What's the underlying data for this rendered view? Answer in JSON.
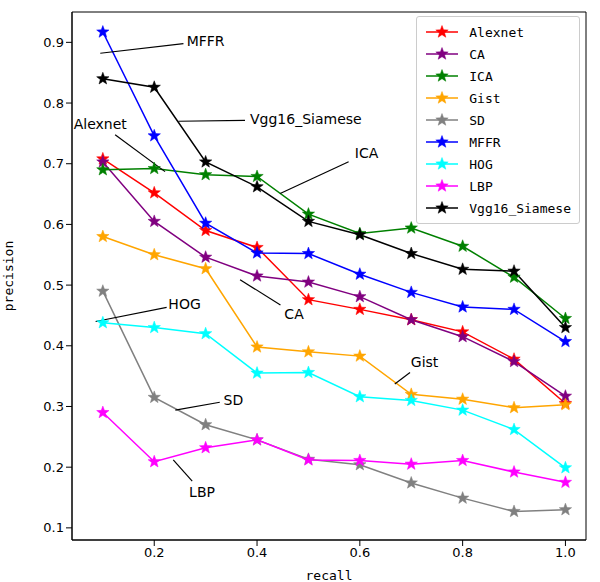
{
  "chart_data": {
    "type": "line",
    "x_label": "recall",
    "y_label": "precision",
    "x": [
      0.1,
      0.2,
      0.3,
      0.4,
      0.5,
      0.6,
      0.7,
      0.8,
      0.9,
      1.0
    ],
    "xlim": [
      0.04,
      1.04
    ],
    "xticks": [
      0.2,
      0.4,
      0.6,
      0.8,
      {
        "value": 1,
        "label": "1.0"
      }
    ],
    "ylim": [
      0.08,
      0.95
    ],
    "yticks": [
      0.1,
      0.2,
      0.3,
      0.4,
      0.5,
      0.6,
      0.7,
      0.8,
      0.9
    ],
    "grid": false,
    "legend": "upper right",
    "marker": "star",
    "line_style": "solid",
    "series": [
      {
        "name": "Alexnet",
        "color": "#ff0000",
        "values": [
          0.708,
          0.652,
          0.59,
          0.562,
          0.476,
          0.46,
          0.443,
          0.423,
          0.378,
          0.305
        ]
      },
      {
        "name": "CA",
        "color": "#800080",
        "values": [
          0.703,
          0.605,
          0.546,
          0.515,
          0.505,
          0.481,
          0.443,
          0.415,
          0.374,
          0.317
        ]
      },
      {
        "name": "ICA",
        "color": "#008000",
        "values": [
          0.69,
          0.692,
          0.682,
          0.679,
          0.617,
          0.585,
          0.594,
          0.564,
          0.513,
          0.445
        ]
      },
      {
        "name": "Gist",
        "color": "#ffa500",
        "values": [
          0.58,
          0.55,
          0.527,
          0.398,
          0.39,
          0.383,
          0.32,
          0.312,
          0.298,
          0.303
        ]
      },
      {
        "name": "SD",
        "color": "#808080",
        "values": [
          0.49,
          0.315,
          0.27,
          0.245,
          0.213,
          0.204,
          0.174,
          0.149,
          0.127,
          0.13
        ]
      },
      {
        "name": "MFFR",
        "color": "#0000ff",
        "values": [
          0.917,
          0.746,
          0.602,
          0.553,
          0.552,
          0.518,
          0.488,
          0.464,
          0.46,
          0.407
        ]
      },
      {
        "name": "HOG",
        "color": "#00ffff",
        "values": [
          0.438,
          0.43,
          0.42,
          0.355,
          0.356,
          0.316,
          0.31,
          0.294,
          0.262,
          0.199
        ]
      },
      {
        "name": "LBP",
        "color": "#ff00ff",
        "values": [
          0.29,
          0.209,
          0.232,
          0.245,
          0.212,
          0.211,
          0.205,
          0.211,
          0.192,
          0.175
        ]
      },
      {
        "name": "Vgg16_Siamese",
        "color": "#000000",
        "values": [
          0.84,
          0.826,
          0.703,
          0.662,
          0.605,
          0.583,
          0.552,
          0.526,
          0.523,
          0.43
        ]
      }
    ],
    "annotations": [
      {
        "text": "MFFR",
        "xy": [
          0.095,
          0.882
        ],
        "xytext": [
          0.3,
          0.902
        ]
      },
      {
        "text": "Vgg16_Siamese",
        "xy": [
          0.247,
          0.77
        ],
        "xytext": [
          0.495,
          0.773
        ]
      },
      {
        "text": "Alexnet",
        "xy": [
          0.221,
          0.687
        ],
        "xytext": [
          0.095,
          0.766
        ]
      },
      {
        "text": "ICA",
        "xy": [
          0.445,
          0.651
        ],
        "xytext": [
          0.613,
          0.717
        ]
      },
      {
        "text": "CA",
        "xy": [
          0.367,
          0.509
        ],
        "xytext": [
          0.472,
          0.453
        ]
      },
      {
        "text": "HOG",
        "xy": [
          0.086,
          0.44
        ],
        "xytext": [
          0.259,
          0.469
        ]
      },
      {
        "text": "SD",
        "xy": [
          0.241,
          0.294
        ],
        "xytext": [
          0.354,
          0.311
        ]
      },
      {
        "text": "Gist",
        "xy": [
          0.668,
          0.337
        ],
        "xytext": [
          0.726,
          0.374
        ]
      },
      {
        "text": "LBP",
        "xy": [
          0.237,
          0.212
        ],
        "xytext": [
          0.293,
          0.159
        ]
      }
    ]
  }
}
